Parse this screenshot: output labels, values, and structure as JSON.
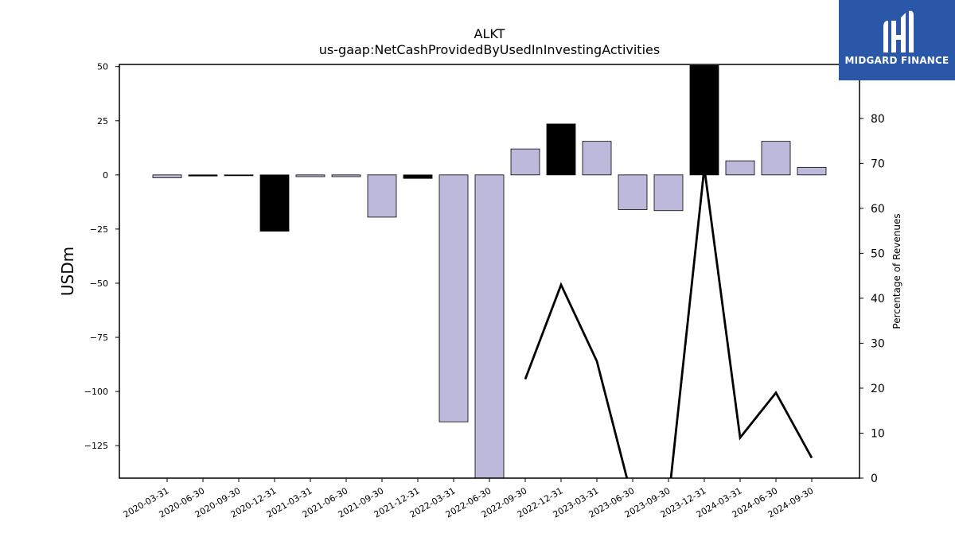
{
  "title": "ALKT",
  "subtitle": "us-gaap:NetCashProvidedByUsedInInvestingActivities",
  "logo": {
    "brand": "MIDGARD FINANCE"
  },
  "colors": {
    "positive_bar": "#bdb9da",
    "highlight_bar": "#000000",
    "line": "#000000"
  },
  "chart_data": {
    "type": "bar",
    "title": "ALKT",
    "subtitle": "us-gaap:NetCashProvidedByUsedInInvestingActivities",
    "ylabel": "USDm",
    "y2label": "Percentage of Revenues",
    "ylim": [
      -140,
      51
    ],
    "y2lim": [
      0,
      92
    ],
    "yticks": [
      50,
      25,
      0,
      -25,
      -50,
      -75,
      -100,
      -125
    ],
    "y2ticks": [
      0,
      10,
      20,
      30,
      40,
      50,
      60,
      70,
      80
    ],
    "categories": [
      "2020-03-31",
      "2020-06-30",
      "2020-09-30",
      "2020-12-31",
      "2021-03-31",
      "2021-06-30",
      "2021-09-30",
      "2021-12-31",
      "2022-03-31",
      "2022-06-30",
      "2022-09-30",
      "2022-12-31",
      "2023-03-31",
      "2023-06-30",
      "2023-09-30",
      "2023-12-31",
      "2024-03-31",
      "2024-06-30",
      "2024-09-30"
    ],
    "series": [
      {
        "kind": "bar",
        "values": [
          -1.3,
          -0.5,
          -0.2,
          -26,
          -0.8,
          -0.8,
          -19.5,
          -1.6,
          -114,
          -141,
          12,
          23.5,
          15.5,
          -16,
          -16.5,
          50.5,
          6.5,
          15.5,
          3.5
        ],
        "highlight": [
          false,
          true,
          true,
          true,
          false,
          false,
          false,
          true,
          false,
          false,
          false,
          true,
          false,
          false,
          false,
          true,
          false,
          false,
          false
        ]
      },
      {
        "kind": "line",
        "axis": "right",
        "x": [
          "2022-09-30",
          "2022-12-31",
          "2023-03-31",
          "2023-06-30",
          "2023-09-30",
          "2023-12-31",
          "2024-03-31",
          "2024-06-30",
          "2024-09-30"
        ],
        "values": [
          22,
          43,
          26,
          -5,
          -5,
          69,
          9,
          19,
          4.5
        ]
      }
    ]
  }
}
